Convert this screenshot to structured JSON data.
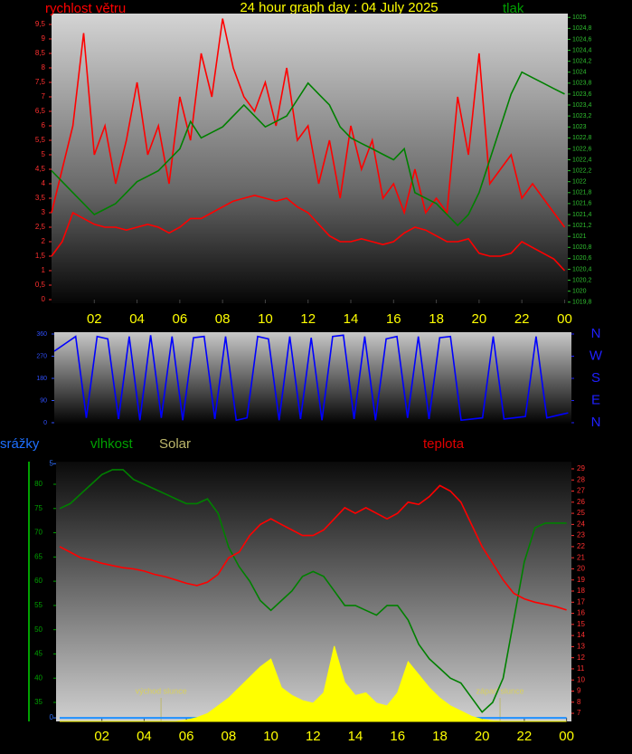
{
  "chart_data": [
    {
      "type": "line",
      "title": "24 hour graph day : 04 July 2025",
      "x": [
        0,
        0.5,
        1,
        1.5,
        2,
        2.5,
        3,
        3.5,
        4,
        4.5,
        5,
        5.5,
        6,
        6.5,
        7,
        7.5,
        8,
        8.5,
        9,
        9.5,
        10,
        10.5,
        11,
        11.5,
        12,
        12.5,
        13,
        13.5,
        14,
        14.5,
        15,
        15.5,
        16,
        16.5,
        17,
        17.5,
        18,
        18.5,
        19,
        19.5,
        20,
        20.5,
        21,
        21.5,
        22,
        22.5,
        23,
        23.5,
        24
      ],
      "xlim": [
        0,
        24.15
      ],
      "xticks": [
        {
          "value": 2,
          "label": "02"
        },
        {
          "value": 4,
          "label": "04"
        },
        {
          "value": 6,
          "label": "06"
        },
        {
          "value": 8,
          "label": "08"
        },
        10,
        12,
        14,
        16,
        18,
        20,
        22,
        {
          "value": 24,
          "label": "00"
        }
      ],
      "ylim": [
        -0.125,
        9.875
      ],
      "yticks": [
        0,
        {
          "value": 0.5,
          "label": "0,5"
        },
        1,
        {
          "value": 1.5,
          "label": "1,5"
        },
        2,
        {
          "value": 2.5,
          "label": "2,5"
        },
        3,
        {
          "value": 3.5,
          "label": "3,5"
        },
        4,
        {
          "value": 4.5,
          "label": "4,5"
        },
        5,
        {
          "value": 5.5,
          "label": "5,5"
        },
        6,
        {
          "value": 6.5,
          "label": "6,5"
        },
        7,
        {
          "value": 7.5,
          "label": "7,5"
        },
        8,
        {
          "value": 8.5,
          "label": "8,5"
        },
        9,
        {
          "value": 9.5,
          "label": "9,5"
        }
      ],
      "y2lim": [
        1019.78,
        1025.07
      ],
      "y2ticks": [
        {
          "value": 1019.8,
          "label": "1019,8"
        },
        1020,
        {
          "value": 1020.2,
          "label": "1020,2"
        },
        {
          "value": 1020.4,
          "label": "1020,4"
        },
        {
          "value": 1020.6,
          "label": "1020,6"
        },
        {
          "value": 1020.8,
          "label": "1020,8"
        },
        1021,
        {
          "value": 1021.2,
          "label": "1021,2"
        },
        {
          "value": 1021.4,
          "label": "1021,4"
        },
        {
          "value": 1021.6,
          "label": "1021,6"
        },
        {
          "value": 1021.8,
          "label": "1021,8"
        },
        1022,
        {
          "value": 1022.2,
          "label": "1022,2"
        },
        {
          "value": 1022.4,
          "label": "1022,4"
        },
        {
          "value": 1022.6,
          "label": "1022,6"
        },
        {
          "value": 1022.8,
          "label": "1022,8"
        },
        1023,
        {
          "value": 1023.2,
          "label": "1023,2"
        },
        {
          "value": 1023.4,
          "label": "1023,4"
        },
        {
          "value": 1023.6,
          "label": "1023,6"
        },
        {
          "value": 1023.8,
          "label": "1023,8"
        },
        1024,
        {
          "value": 1024.2,
          "label": "1024,2"
        },
        {
          "value": 1024.4,
          "label": "1024,4"
        },
        {
          "value": 1024.6,
          "label": "1024,6"
        },
        {
          "value": 1024.8,
          "label": "1024,8"
        },
        1025
      ],
      "series": [
        {
          "name": "rychlost větru",
          "color": "#ff0000",
          "values": [
            3,
            4.5,
            6,
            9.2,
            5,
            6,
            4,
            5.5,
            7.5,
            5,
            6,
            4,
            7,
            5.5,
            8.5,
            7,
            9.7,
            8,
            7,
            6.5,
            7.5,
            6,
            8,
            5.5,
            6,
            4,
            5.5,
            3.5,
            6,
            4.5,
            5.5,
            3.5,
            4,
            3,
            4.5,
            3,
            3.5,
            3,
            7,
            5,
            8.5,
            4,
            4.5,
            5,
            3.5,
            4,
            3.5,
            3,
            2.5
          ]
        },
        {
          "color": "#ff0000",
          "values": [
            1.5,
            2,
            3,
            2.8,
            2.6,
            2.5,
            2.5,
            2.4,
            2.5,
            2.6,
            2.5,
            2.3,
            2.5,
            2.8,
            2.8,
            3,
            3.2,
            3.4,
            3.5,
            3.6,
            3.5,
            3.4,
            3.5,
            3.2,
            3,
            2.6,
            2.2,
            2,
            2,
            2.1,
            2,
            1.9,
            2,
            2.3,
            2.5,
            2.4,
            2.2,
            2,
            2,
            2.1,
            1.6,
            1.5,
            1.5,
            1.6,
            2,
            1.8,
            1.6,
            1.4,
            1
          ]
        },
        {
          "name": "tlak",
          "color": "#008000",
          "axis": "y2",
          "values": [
            1022.2,
            1022.0,
            1021.8,
            1021.6,
            1021.4,
            1021.5,
            1021.6,
            1021.8,
            1022.0,
            1022.1,
            1022.2,
            1022.4,
            1022.6,
            1023.1,
            1022.8,
            1022.9,
            1023.0,
            1023.2,
            1023.4,
            1023.2,
            1023.0,
            1023.1,
            1023.2,
            1023.5,
            1023.8,
            1023.6,
            1023.4,
            1023.0,
            1022.8,
            1022.7,
            1022.6,
            1022.5,
            1022.4,
            1022.6,
            1021.8,
            1021.7,
            1021.6,
            1021.4,
            1021.2,
            1021.4,
            1021.8,
            1022.4,
            1023.0,
            1023.6,
            1024.0,
            1023.9,
            1023.8,
            1023.7,
            1023.6
          ]
        }
      ]
    },
    {
      "type": "line",
      "x": [
        0,
        0.5,
        1,
        1.5,
        2,
        2.5,
        3,
        3.5,
        4,
        4.5,
        5,
        5.5,
        6,
        6.5,
        7,
        7.5,
        8,
        8.5,
        9,
        9.5,
        10,
        10.5,
        11,
        11.5,
        12,
        12.5,
        13,
        13.5,
        14,
        14.5,
        15,
        15.5,
        16,
        16.5,
        17,
        17.5,
        18,
        18.5,
        19,
        19.5,
        20,
        20.5,
        21,
        21.5,
        22,
        22.5,
        23,
        23.5,
        24
      ],
      "xlim": [
        0,
        24.15
      ],
      "ylim": [
        -7.3,
        367.3
      ],
      "yticks": [
        0,
        90,
        180,
        270,
        360
      ],
      "y2lim": [
        -7.3,
        367.3
      ],
      "y2ticks": [
        {
          "value": 360,
          "label": "N"
        },
        {
          "value": 270,
          "label": "W"
        },
        {
          "value": 180,
          "label": "S"
        },
        {
          "value": 90,
          "label": "E"
        },
        {
          "value": 0,
          "label": "N"
        }
      ],
      "series": [
        {
          "color": "#0000ff",
          "values": [
            290,
            320,
            350,
            20,
            350,
            340,
            15,
            350,
            10,
            355,
            20,
            350,
            10,
            345,
            350,
            15,
            350,
            10,
            20,
            350,
            340,
            10,
            350,
            15,
            345,
            10,
            350,
            355,
            15,
            350,
            10,
            340,
            350,
            20,
            350,
            15,
            345,
            350,
            10,
            15,
            20,
            350,
            15,
            20,
            25,
            350,
            20,
            30,
            40
          ]
        }
      ]
    },
    {
      "type": "line",
      "x": [
        0,
        0.5,
        1,
        1.5,
        2,
        2.5,
        3,
        3.5,
        4,
        4.5,
        5,
        5.5,
        6,
        6.5,
        7,
        7.5,
        8,
        8.5,
        9,
        9.5,
        10,
        10.5,
        11,
        11.5,
        12,
        12.5,
        13,
        13.5,
        14,
        14.5,
        15,
        15.5,
        16,
        16.5,
        17,
        17.5,
        18,
        18.5,
        19,
        19.5,
        20,
        20.5,
        21,
        21.5,
        22,
        22.5,
        23,
        23.5,
        24
      ],
      "xlim": [
        -0.17,
        24.23
      ],
      "xticks": [
        {
          "value": 2,
          "label": "02"
        },
        {
          "value": 4,
          "label": "04"
        },
        {
          "value": 6,
          "label": "06"
        },
        {
          "value": 8,
          "label": "08"
        },
        10,
        12,
        14,
        16,
        18,
        20,
        22,
        {
          "value": 24,
          "label": "00"
        }
      ],
      "ylim": [
        31.08,
        84.67
      ],
      "yticks": [
        35,
        40,
        45,
        50,
        55,
        60,
        65,
        70,
        75,
        80
      ],
      "y2lim": [
        6.27,
        29.65
      ],
      "y2ticks": [
        7,
        8,
        9,
        10,
        11,
        12,
        13,
        14,
        15,
        16,
        17,
        18,
        19,
        20,
        21,
        22,
        23,
        24,
        25,
        26,
        27,
        28,
        29
      ],
      "y3lim": [
        -0.07,
        5.04
      ],
      "y3ticks": [
        0,
        5
      ],
      "y4lim": [
        0,
        1000
      ],
      "series": [
        {
          "name": "srážky",
          "color": "#1e90ff",
          "axis": "y3",
          "values": [
            0,
            0,
            0,
            0,
            0,
            0,
            0,
            0,
            0,
            0,
            0,
            0,
            0,
            0,
            0,
            0,
            0,
            0,
            0,
            0,
            0,
            0,
            0,
            0,
            0,
            0,
            0,
            0,
            0,
            0,
            0,
            0,
            0,
            0,
            0,
            0,
            0,
            0,
            0,
            0,
            0,
            0,
            0,
            0,
            0,
            0,
            0,
            0,
            0
          ]
        },
        {
          "name": "vlhkost",
          "color": "#008000",
          "values": [
            75,
            76,
            78,
            80,
            82,
            83,
            83,
            81,
            80,
            79,
            78,
            77,
            76,
            76,
            77,
            74,
            67,
            63,
            60,
            56,
            54,
            56,
            58,
            61,
            62,
            61,
            58,
            55,
            55,
            54,
            53,
            55,
            55,
            52,
            47,
            44,
            42,
            40,
            39,
            36,
            33,
            35,
            40,
            52,
            64,
            71,
            72,
            72,
            72
          ]
        },
        {
          "name": "Solar",
          "color": "#ffff00",
          "axis": "y4",
          "type": "area",
          "values": [
            0,
            0,
            0,
            0,
            0,
            0,
            0,
            0,
            0,
            0,
            0,
            0,
            5,
            15,
            30,
            60,
            90,
            130,
            170,
            210,
            240,
            130,
            100,
            80,
            70,
            110,
            290,
            150,
            100,
            110,
            70,
            60,
            110,
            230,
            180,
            130,
            90,
            60,
            40,
            20,
            8,
            2,
            0,
            0,
            0,
            0,
            0,
            0,
            0
          ]
        },
        {
          "name": "teplota",
          "color": "#ff0000",
          "axis": "y2",
          "values": [
            22,
            21.5,
            21,
            20.8,
            20.5,
            20.3,
            20.1,
            20,
            19.8,
            19.5,
            19.3,
            19,
            18.7,
            18.5,
            18.8,
            19.5,
            21,
            21.5,
            23,
            24,
            24.5,
            24,
            23.5,
            23,
            23,
            23.5,
            24.5,
            25.5,
            25,
            25.5,
            25,
            24.5,
            25,
            26,
            25.8,
            26.5,
            27.5,
            27,
            26,
            24,
            22,
            20.5,
            19,
            17.8,
            17.3,
            17,
            16.8,
            16.6,
            16.3
          ]
        }
      ],
      "annotations": [
        {
          "text": "východ slunce",
          "x": 4.8
        },
        {
          "text": "západ slunce",
          "x": 20.85
        }
      ]
    }
  ]
}
